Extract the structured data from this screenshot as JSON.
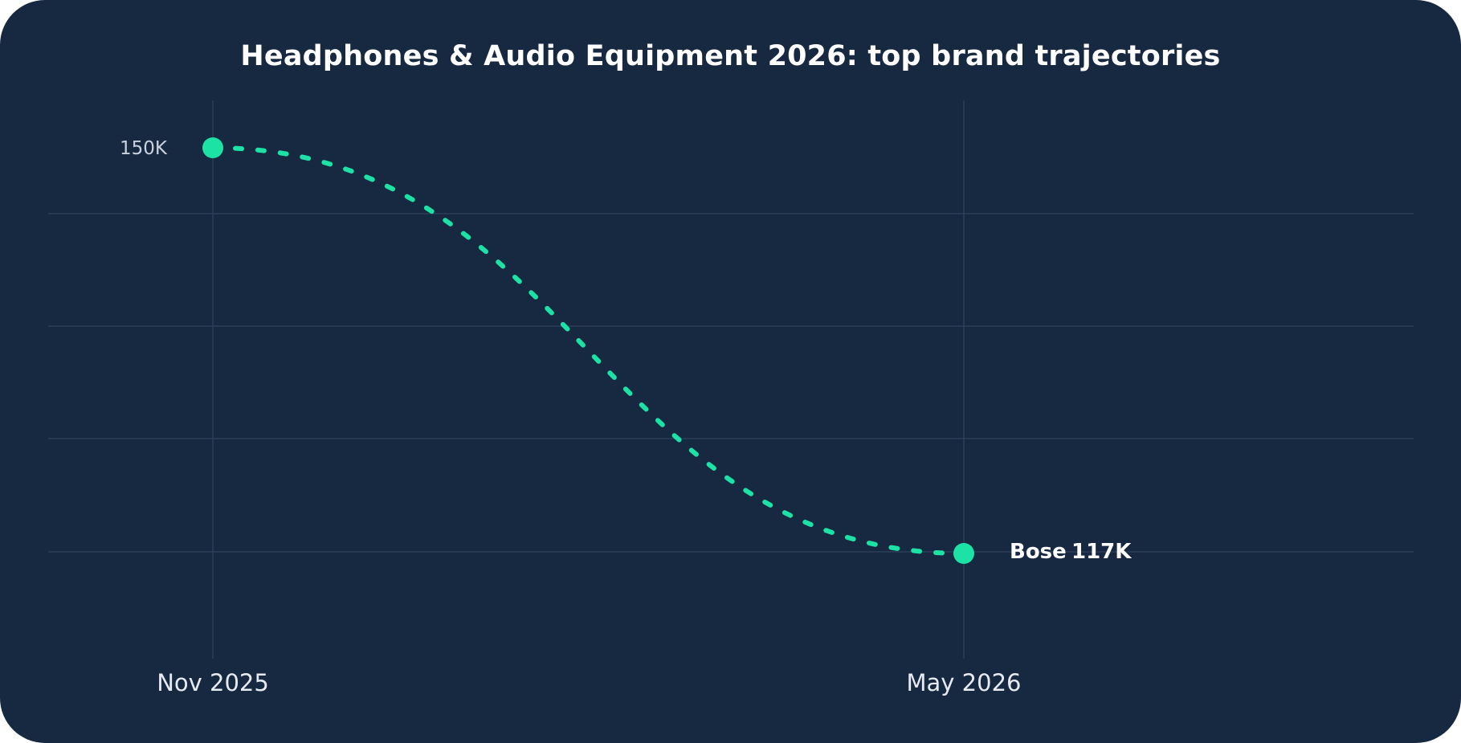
{
  "chart_data": {
    "type": "line",
    "title": "Headphones & Audio Equipment 2026: top brand trajectories",
    "xlabel": "",
    "ylabel": "",
    "x": [
      "Nov 2025",
      "May 2026"
    ],
    "series": [
      {
        "name": "Bose",
        "values": [
          150000,
          117000
        ],
        "start_label": "150K",
        "end_value_label": "117K",
        "color": "#1de2a6",
        "line_style": "dashed"
      }
    ],
    "ylim": [
      112000,
      153000
    ],
    "grid": true,
    "legend": "none"
  },
  "colors": {
    "background": "#172841",
    "gridline": "#2d3f58",
    "accent": "#1de2a6",
    "text": "#ffffff"
  }
}
